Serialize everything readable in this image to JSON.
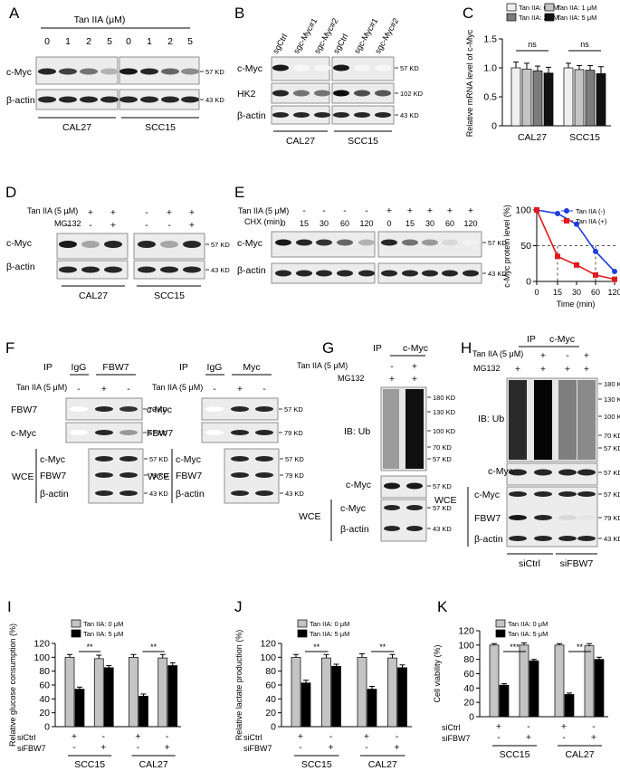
{
  "panels": {
    "A": {
      "letter": "A",
      "treatment": "Tan IIA (μM)",
      "doses": [
        "0",
        "1",
        "2",
        "5",
        "0",
        "1",
        "2",
        "5"
      ],
      "rows": [
        "c-Myc",
        "β-actin"
      ],
      "markers": [
        "57 KD",
        "43 KD"
      ],
      "cells": [
        "CAL27",
        "SCC15"
      ]
    },
    "B": {
      "letter": "B",
      "lanes": [
        "sgCtrl",
        "sgc-Myc#1",
        "sgc-Myc#2",
        "sgCtrl",
        "sgc-Myc#1",
        "sgc-Myc#2"
      ],
      "rows": [
        "c-Myc",
        "HK2",
        "β-actin"
      ],
      "markers": [
        "57 KD",
        "102 KD",
        "43 KD"
      ],
      "cells": [
        "CAL27",
        "SCC15"
      ]
    },
    "D": {
      "letter": "D",
      "treatments": [
        "Tan IIA (5 μM)",
        "MG132"
      ],
      "signs_tan": [
        "-",
        "+",
        "+",
        "-",
        "+",
        "+"
      ],
      "signs_mg": [
        "-",
        "-",
        "+",
        "-",
        "-",
        "+"
      ],
      "rows": [
        "c-Myc",
        "β-actin"
      ],
      "markers": [
        "57 KD",
        "43 KD"
      ],
      "cells": [
        "CAL27",
        "SCC15"
      ]
    },
    "E": {
      "letter": "E",
      "treatments": [
        "Tan IIA (5 μM)",
        "CHX (min)"
      ],
      "signs_tan": [
        "-",
        "-",
        "-",
        "-",
        "-",
        "+",
        "+",
        "+",
        "+",
        "+"
      ],
      "times": [
        "0",
        "15",
        "30",
        "60",
        "120",
        "0",
        "15",
        "30",
        "60",
        "120"
      ],
      "rows": [
        "c-Myc",
        "β-actin"
      ],
      "markers": [
        "57 KD",
        "43 KD"
      ]
    },
    "F": {
      "letter": "F",
      "left": {
        "ip": "IP",
        "groups": [
          "IgG",
          "FBW7"
        ],
        "treatment": "Tan IIA (5 μM)",
        "signs": [
          "-",
          "+",
          "-"
        ],
        "ip_rows": [
          "FBW7",
          "c-Myc"
        ],
        "ip_markers": [
          "79 KD",
          "57 KD"
        ],
        "wce": "WCE",
        "wce_rows": [
          "c-Myc",
          "FBW7",
          "β-actin"
        ],
        "wce_markers": [
          "57 KD",
          "79 KD",
          "43 KD"
        ]
      },
      "right": {
        "ip": "IP",
        "groups": [
          "IgG",
          "Myc"
        ],
        "treatment": "Tan IIA (5 μM)",
        "signs": [
          "-",
          "+",
          "-"
        ],
        "ip_rows": [
          "c-Myc",
          "FBW7"
        ],
        "ip_markers": [
          "57 KD",
          "79 KD"
        ],
        "wce": "WCE",
        "wce_rows": [
          "c-Myc",
          "FBW7",
          "β-actin"
        ],
        "wce_markers": [
          "57 KD",
          "79 KD",
          "43 KD"
        ]
      }
    },
    "G": {
      "letter": "G",
      "ip": "IP",
      "ip_target": "c-Myc",
      "treatments": [
        "Tan IIA (5 μM)",
        "MG132"
      ],
      "signs_tan": [
        "-",
        "+"
      ],
      "signs_mg": [
        "+",
        "+"
      ],
      "ub_label": "IB: Ub",
      "ub_markers": [
        "180 KD",
        "130 KD",
        "100 KD",
        "70 KD",
        "57 KD"
      ],
      "rows": [
        "c-Myc"
      ],
      "row_markers": [
        "57 KD"
      ],
      "wce": "WCE",
      "wce_rows": [
        "c-Myc",
        "β-actin"
      ],
      "wce_markers": [
        "57 KD",
        "43 KD"
      ]
    },
    "H": {
      "letter": "H",
      "ip": "IP",
      "ip_target": "c-Myc",
      "treatments": [
        "Tan IIA (5 μM)",
        "MG132"
      ],
      "signs_tan": [
        "-",
        "+",
        "-",
        "+"
      ],
      "signs_mg": [
        "+",
        "+",
        "+",
        "+"
      ],
      "ub_label": "IB: Ub",
      "ub_markers": [
        "180 KD",
        "130 KD",
        "100 KD",
        "70 KD",
        "57 KD"
      ],
      "rows": [
        "c-Myc"
      ],
      "row_markers": [
        "57 KD"
      ],
      "wce": "WCE",
      "wce_rows": [
        "c-Myc",
        "FBW7",
        "β-actin"
      ],
      "wce_markers": [
        "57 KD",
        "79 KD",
        "43 KD"
      ],
      "groups": [
        "siCtrl",
        "siFBW7"
      ]
    },
    "C": {
      "letter": "C"
    },
    "I": {
      "letter": "I"
    },
    "J": {
      "letter": "J"
    },
    "K": {
      "letter": "K"
    },
    "E_chart": {}
  },
  "chart_data": [
    {
      "panel": "C",
      "type": "bar",
      "ylabel": "Relative mRNA level of c-Myc",
      "ylim": [
        0,
        1.5
      ],
      "yticks": [
        "0",
        "0.5",
        "1.0",
        "1.5"
      ],
      "categories": [
        "CAL27",
        "SCC15"
      ],
      "series": [
        {
          "name": "Tan IIA: 0 μM",
          "values": [
            1.0,
            1.0
          ],
          "errors": [
            0.1,
            0.08
          ],
          "color": "#f0f0f0"
        },
        {
          "name": "Tan IIA: 1 μM",
          "values": [
            0.98,
            0.97
          ],
          "errors": [
            0.1,
            0.07
          ],
          "color": "#c4c4c4"
        },
        {
          "name": "Tan IIA: 2 μM",
          "values": [
            0.95,
            0.96
          ],
          "errors": [
            0.08,
            0.08
          ],
          "color": "#7c7c7c"
        },
        {
          "name": "Tan IIA: 5 μM",
          "values": [
            0.91,
            0.9
          ],
          "errors": [
            0.1,
            0.12
          ],
          "color": "#111111"
        }
      ],
      "annotations": [
        "ns",
        "ns"
      ]
    },
    {
      "panel": "E",
      "type": "line",
      "ylabel": "c-Myc protein level (%)",
      "xlabel": "Time (min)",
      "ylim": [
        0,
        100
      ],
      "yticks": [
        "0",
        "50",
        "100"
      ],
      "x": [
        0,
        15,
        30,
        60,
        120
      ],
      "xticks": [
        "0",
        "15",
        "30",
        "60",
        "120"
      ],
      "series": [
        {
          "name": "Tan IIA (-)",
          "values": [
            100,
            95,
            80,
            42,
            14
          ],
          "color": "#1f3ce0"
        },
        {
          "name": "Tan IIA (+)",
          "values": [
            100,
            35,
            23,
            9,
            3
          ],
          "color": "#e01a1a"
        }
      ]
    },
    {
      "panel": "I",
      "type": "bar",
      "ylabel": "Relative glucose consumption (%)",
      "ylim": [
        0,
        120
      ],
      "yticks": [
        "0",
        "20",
        "40",
        "60",
        "80",
        "100",
        "120"
      ],
      "groups": [
        "SCC15",
        "CAL27"
      ],
      "row_labels": [
        "siCtrl",
        "siFBW7"
      ],
      "siCtrl": [
        "+",
        "-",
        "+",
        "-"
      ],
      "siFBW7": [
        "-",
        "+",
        "-",
        "+"
      ],
      "series": [
        {
          "name": "Tan IIA: 0 μM",
          "values": [
            100,
            98,
            100,
            99
          ],
          "errors": [
            4,
            5,
            4,
            5
          ],
          "color": "#c4c4c4"
        },
        {
          "name": "Tan IIA: 5 μM",
          "values": [
            54,
            85,
            44,
            88
          ],
          "errors": [
            3,
            3,
            3,
            4
          ],
          "color": "#000000"
        }
      ],
      "annotations": [
        "**",
        "**"
      ]
    },
    {
      "panel": "J",
      "type": "bar",
      "ylabel": "Relative lactate production (%)",
      "ylim": [
        0,
        120
      ],
      "yticks": [
        "0",
        "20",
        "40",
        "60",
        "80",
        "100",
        "120"
      ],
      "groups": [
        "SCC15",
        "CAL27"
      ],
      "row_labels": [
        "siCtrl",
        "siFBW7"
      ],
      "siCtrl": [
        "+",
        "-",
        "+",
        "-"
      ],
      "siFBW7": [
        "-",
        "+",
        "-",
        "+"
      ],
      "series": [
        {
          "name": "Tan IIA: 0 μM",
          "values": [
            100,
            99,
            100,
            99
          ],
          "errors": [
            4,
            5,
            5,
            5
          ],
          "color": "#c4c4c4"
        },
        {
          "name": "Tan IIA: 5 μM",
          "values": [
            63,
            87,
            54,
            85
          ],
          "errors": [
            4,
            3,
            4,
            4
          ],
          "color": "#000000"
        }
      ],
      "annotations": [
        "**",
        "**"
      ]
    },
    {
      "panel": "K",
      "type": "bar",
      "ylabel": "Cell viability (%)",
      "ylim": [
        0,
        120
      ],
      "yticks": [
        "0",
        "20",
        "40",
        "60",
        "80",
        "100",
        "120"
      ],
      "groups": [
        "SCC15",
        "CAL27"
      ],
      "row_labels": [
        "siCtrl",
        "siFBW7"
      ],
      "siCtrl": [
        "+",
        "-",
        "+",
        "-"
      ],
      "siFBW7": [
        "-",
        "+",
        "-",
        "+"
      ],
      "series": [
        {
          "name": "Tan IIA: 0 μM",
          "values": [
            100,
            100,
            100,
            99
          ],
          "errors": [
            2,
            3,
            2,
            3
          ],
          "color": "#c4c4c4"
        },
        {
          "name": "Tan IIA: 5 μM",
          "values": [
            44,
            78,
            31,
            80
          ],
          "errors": [
            2,
            2,
            2,
            3
          ],
          "color": "#000000"
        }
      ],
      "annotations": [
        "***",
        "**"
      ]
    }
  ]
}
